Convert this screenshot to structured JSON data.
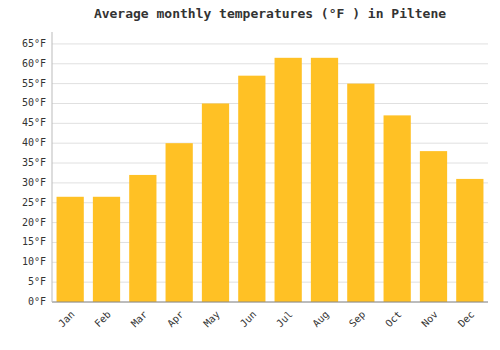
{
  "chart_data": {
    "type": "bar",
    "title": "Average monthly temperatures (°F ) in Piltene",
    "categories": [
      "Jan",
      "Feb",
      "Mar",
      "Apr",
      "May",
      "Jun",
      "Jul",
      "Aug",
      "Sep",
      "Oct",
      "Nov",
      "Dec"
    ],
    "values": [
      26.5,
      26.5,
      32,
      40,
      50,
      57,
      61.5,
      61.5,
      55,
      47,
      38,
      31
    ],
    "color": "#FFC125",
    "ylim": [
      0,
      68
    ],
    "yticks": [
      {
        "value": 0,
        "label": "0°F"
      },
      {
        "value": 5,
        "label": "5°F"
      },
      {
        "value": 10,
        "label": "10°F"
      },
      {
        "value": 15,
        "label": "15°F"
      },
      {
        "value": 20,
        "label": "20°F"
      },
      {
        "value": 25,
        "label": "25°F"
      },
      {
        "value": 30,
        "label": "30°F"
      },
      {
        "value": 35,
        "label": "35°F"
      },
      {
        "value": 40,
        "label": "40°F"
      },
      {
        "value": 45,
        "label": "45°F"
      },
      {
        "value": 50,
        "label": "50°F"
      },
      {
        "value": 55,
        "label": "55°F"
      },
      {
        "value": 60,
        "label": "60°F"
      },
      {
        "value": 65,
        "label": "65°F"
      }
    ],
    "grid": true
  }
}
